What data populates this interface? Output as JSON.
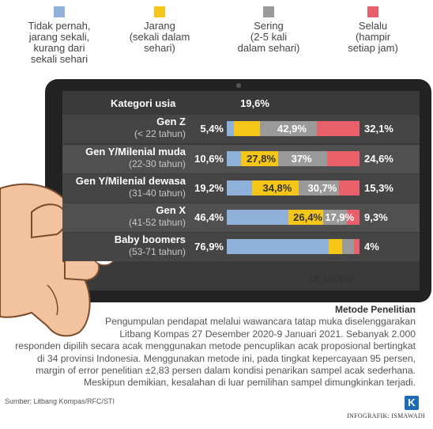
{
  "legend": [
    {
      "label": "Tidak pernah,\njarang sekali,\nkurang dari\nsekali sehari",
      "color": "#8fb0d8"
    },
    {
      "label": "Jarang\n(sekali dalam\nsehari)",
      "color": "#f5c518"
    },
    {
      "label": "Sering\n(2-5 kali\ndalam sehari)",
      "color": "#9a9a9a"
    },
    {
      "label": "Selalu\n(hampir\nsetiap jam)",
      "color": "#e8606a"
    }
  ],
  "chart_data": {
    "type": "bar",
    "stacked": true,
    "orientation": "horizontal",
    "header_label": "Kategori usia",
    "categories": [
      {
        "name": "Gen Z",
        "range": "(< 22 tahun)"
      },
      {
        "name": "Gen Y/Milenial muda",
        "range": "(22-30 tahun)"
      },
      {
        "name": "Gen Y/Milenial dewasa",
        "range": "(31-40 tahun)"
      },
      {
        "name": "Gen X",
        "range": "(41-52 tahun)"
      },
      {
        "name": "Baby boomers",
        "range": "(53-71 tahun)"
      }
    ],
    "series": [
      {
        "name": "Tidak pernah, jarang sekali, kurang dari sekali sehari",
        "values": [
          5.4,
          10.6,
          19.2,
          46.4,
          76.9
        ],
        "labels": [
          "5,4%",
          "10,6%",
          "19,2%",
          "46,4%",
          "76,9%"
        ]
      },
      {
        "name": "Jarang (sekali dalam sehari)",
        "values": [
          19.6,
          27.8,
          34.8,
          26.4,
          10.1
        ],
        "labels": [
          "19,6%",
          "27,8%",
          "34,8%",
          "26,4%",
          "10,1%"
        ]
      },
      {
        "name": "Sering (2-5 kali dalam sehari)",
        "values": [
          42.9,
          37,
          30.7,
          17.9,
          9
        ],
        "labels": [
          "42,9%",
          "37%",
          "30,7%",
          "17,9%",
          "9%"
        ]
      },
      {
        "name": "Selalu (hampir setiap jam)",
        "values": [
          32.1,
          24.6,
          15.3,
          9.3,
          4
        ],
        "labels": [
          "32,1%",
          "24,6%",
          "15,3%",
          "9,3%",
          "4%"
        ]
      }
    ],
    "xlim": [
      0,
      100
    ]
  },
  "method": {
    "title": "Metode Penelitian",
    "lines": [
      "Pengumpulan pendapat melalui wawancara tatap muka diselenggarakan",
      "Litbang Kompas 27 Desember 2020-9 Januari 2021. Sebanyak 2.000",
      "responden dipilih secara acak menggunakan metode pencuplikan acak proposional bertingkat",
      "di 34 provinsi Indonesia. Menggunakan metode ini, pada tingkat kepercayaan 95 persen,",
      "margin of error penelitian ±2,83 persen dalam kondisi penarikan sampel acak sederhana.",
      "Meskipun demikian, kesalahan di luar pemilihan sampel dimungkinkan terjadi."
    ]
  },
  "source": "Sumber: Litbang Kompas/RFC/STI",
  "logo_letter": "K",
  "credit": "INFOGRAFIK: ISMAWADI"
}
